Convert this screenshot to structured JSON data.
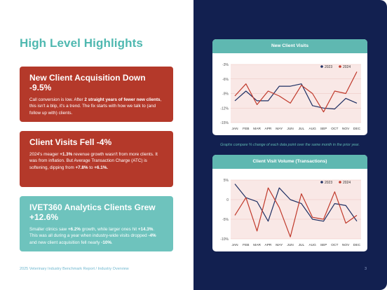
{
  "left": {
    "title": "High Level Highlights",
    "cards": [
      {
        "title": "New Client Acquisition Down -9.5%",
        "body": [
          {
            "t": "Call conversion is low. After ",
            "b": false
          },
          {
            "t": "2 straight years of fewer new clients",
            "b": true
          },
          {
            "t": ", this isn't a blip, it's a trend. The fix starts with how we talk to (and follow up with) clients.",
            "b": false
          }
        ]
      },
      {
        "title": "Client Visits Fell -4%",
        "body": [
          {
            "t": "2024's meager ",
            "b": false
          },
          {
            "t": "+1.3%",
            "b": true
          },
          {
            "t": " revenue growth wasn't from more clients. It was from inflation. But Average Transaction Charge (ATC) is softening, dipping from ",
            "b": false
          },
          {
            "t": "+7.8%",
            "b": true
          },
          {
            "t": " to ",
            "b": false
          },
          {
            "t": "+6.1%.",
            "b": true
          }
        ]
      },
      {
        "title": "IVET360 Analytics Clients Grew +12.6%",
        "body": [
          {
            "t": "Smaller clinics saw ",
            "b": false
          },
          {
            "t": "+6.2%",
            "b": true
          },
          {
            "t": " growth, while larger ones hit ",
            "b": false
          },
          {
            "t": "+14.3%",
            "b": true
          },
          {
            "t": ". This was all during a year when industry-wide visits dropped ",
            "b": false
          },
          {
            "t": "-4%",
            "b": true
          },
          {
            "t": " and new client acquisition fell nearly ",
            "b": false
          },
          {
            "t": "-10%",
            "b": true
          },
          {
            "t": ".",
            "b": false
          }
        ]
      }
    ],
    "footer": "2025 Veterinary Industry Benchmark Report / Industry Overview"
  },
  "right": {
    "note": "Graphs compare % change of each data point over the same month in the prior year.",
    "page_number": "3"
  },
  "colors": {
    "teal": "#5fb8b1",
    "red_card": "#b4392a",
    "navy": "#122050",
    "series_2023": "#1e2f63",
    "series_2024": "#c0392b",
    "plot_band": "#f9e8e6"
  },
  "chart_data": [
    {
      "type": "line",
      "title": "New Client Visits",
      "categories": [
        "JAN",
        "FEB",
        "MAR",
        "APR",
        "MAY",
        "JUN",
        "JUL",
        "AUG",
        "SEP",
        "OCT",
        "NOV",
        "DEC"
      ],
      "series": [
        {
          "name": "2023",
          "values": [
            -10.5,
            -8.5,
            -10.5,
            -10.5,
            -7.5,
            -7.5,
            -7.0,
            -11.5,
            -12.0,
            -12.2,
            -10.0,
            -11.0
          ]
        },
        {
          "name": "2024",
          "values": [
            -9.5,
            -7.0,
            -11.3,
            -8.5,
            -9.5,
            -11.0,
            -7.3,
            -9.0,
            -12.8,
            -8.5,
            -9.0,
            -4.5
          ]
        }
      ],
      "yticks": [
        "-3%",
        "-6%",
        "-9%",
        "-12%",
        "-15%"
      ],
      "ylim": [
        -15,
        -3
      ],
      "legend": "top-right"
    },
    {
      "type": "line",
      "title": "Client Visit Volume (Transactions)",
      "categories": [
        "JAN",
        "FEB",
        "MAR",
        "APR",
        "MAY",
        "JUN",
        "JUL",
        "AUG",
        "SEP",
        "OCT",
        "NOV",
        "DEC"
      ],
      "series": [
        {
          "name": "2023",
          "values": [
            4.0,
            0.5,
            -0.5,
            -5.5,
            3.0,
            0.0,
            -1.0,
            -5.0,
            -5.5,
            -1.0,
            -1.5,
            -5.5
          ]
        },
        {
          "name": "2024",
          "values": [
            -4.0,
            0.5,
            -8.0,
            3.0,
            -2.0,
            -9.5,
            1.5,
            -4.5,
            -5.0,
            2.0,
            -6.0,
            -4.0
          ]
        }
      ],
      "yticks": [
        "5%",
        "0",
        "-5%",
        "-10%"
      ],
      "ylim": [
        -10,
        5
      ],
      "legend": "top-right"
    }
  ]
}
